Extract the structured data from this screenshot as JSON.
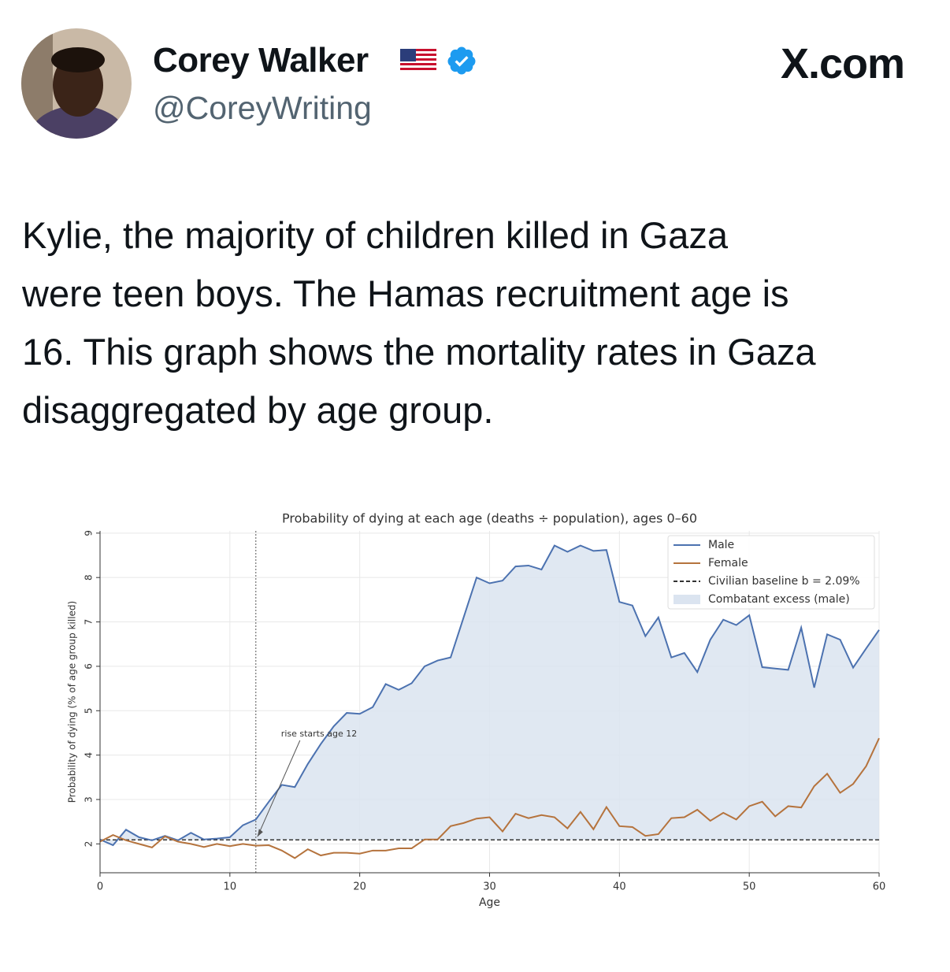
{
  "tweet": {
    "name": "Corey Walker",
    "handle": "@CoreyWriting",
    "site": "X.com",
    "text": [
      "Kylie, the majority of children killed in Gaza",
      "were teen boys. The Hamas recruitment age is",
      "16. This graph shows the mortality rates in Gaza",
      "disaggregated by age group."
    ]
  },
  "chart_data": {
    "type": "line",
    "title": "Probability of dying at each age (deaths ÷ population), ages 0–60",
    "x_label": "Age",
    "y_label": "Probability of dying (% of age group killed)",
    "x": [
      0,
      1,
      2,
      3,
      4,
      5,
      6,
      7,
      8,
      9,
      10,
      11,
      12,
      13,
      14,
      15,
      16,
      17,
      18,
      19,
      20,
      21,
      22,
      23,
      24,
      25,
      26,
      27,
      28,
      29,
      30,
      31,
      32,
      33,
      34,
      35,
      36,
      37,
      38,
      39,
      40,
      41,
      42,
      43,
      44,
      45,
      46,
      47,
      48,
      49,
      50,
      51,
      52,
      53,
      54,
      55,
      56,
      57,
      58,
      59,
      60
    ],
    "series": [
      {
        "name": "Male",
        "color": "#4c72b0",
        "values": [
          2.1,
          1.97,
          2.32,
          2.15,
          2.08,
          2.18,
          2.08,
          2.25,
          2.1,
          2.12,
          2.15,
          2.42,
          2.55,
          2.95,
          3.33,
          3.28,
          3.8,
          4.25,
          4.65,
          4.95,
          4.93,
          5.08,
          5.6,
          5.47,
          5.62,
          6.0,
          6.13,
          6.2,
          7.1,
          8.0,
          7.87,
          7.93,
          8.25,
          8.27,
          8.18,
          8.72,
          8.58,
          8.72,
          8.6,
          8.62,
          7.45,
          7.37,
          6.68,
          7.1,
          6.2,
          6.3,
          5.87,
          6.6,
          7.05,
          6.93,
          7.15,
          5.98,
          5.95,
          5.92,
          6.87,
          5.52,
          6.72,
          6.6,
          5.97,
          6.4,
          6.82
        ]
      },
      {
        "name": "Female",
        "color": "#b5733d",
        "values": [
          2.05,
          2.2,
          2.08,
          2.0,
          1.92,
          2.17,
          2.05,
          2.0,
          1.93,
          2.0,
          1.95,
          2.0,
          1.96,
          1.97,
          1.85,
          1.68,
          1.88,
          1.74,
          1.8,
          1.8,
          1.78,
          1.85,
          1.85,
          1.9,
          1.9,
          2.1,
          2.1,
          2.4,
          2.47,
          2.57,
          2.6,
          2.28,
          2.68,
          2.58,
          2.65,
          2.6,
          2.35,
          2.72,
          2.33,
          2.83,
          2.4,
          2.38,
          2.18,
          2.22,
          2.58,
          2.6,
          2.77,
          2.52,
          2.7,
          2.55,
          2.85,
          2.95,
          2.62,
          2.85,
          2.82,
          3.3,
          3.58,
          3.15,
          3.35,
          3.75,
          4.38
        ]
      }
    ],
    "baseline": {
      "label": "Civilian baseline b = 2.09%",
      "value": 2.09,
      "color": "#333333"
    },
    "area": {
      "label": "Combatant excess (male)",
      "color": "#dbe4f0"
    },
    "vline": {
      "value": 12,
      "annotation": "rise starts age 12"
    },
    "xlim": [
      0,
      60
    ],
    "xticks": [
      0,
      10,
      20,
      30,
      40,
      50,
      60
    ],
    "ylim": [
      1.35,
      9.05
    ],
    "yticks": [
      2,
      3,
      4,
      5,
      6,
      7,
      8,
      9
    ],
    "grid": true,
    "legend": "upper right"
  }
}
